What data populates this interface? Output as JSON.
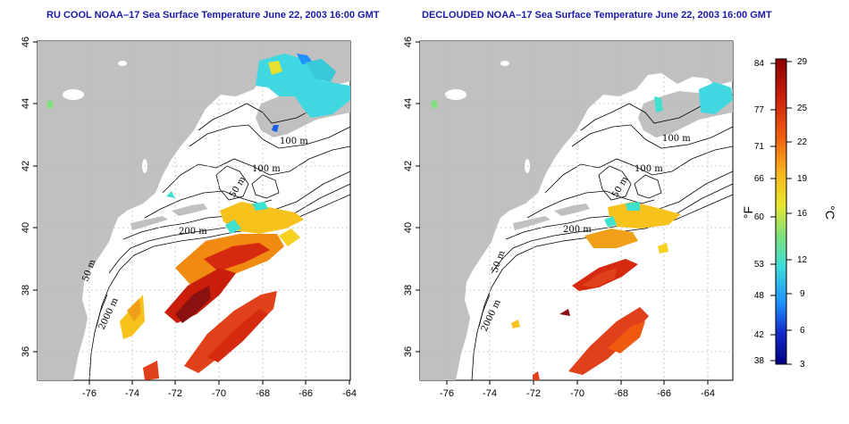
{
  "maps": [
    {
      "title": "RU COOL NOAA–17 Sea Surface Temperature June 22, 2003 16:00 GMT",
      "x_ticks": [
        "-76",
        "-74",
        "-72",
        "-70",
        "-68",
        "-66",
        "-64"
      ],
      "y_ticks": [
        "46",
        "44",
        "42",
        "40",
        "38",
        "36"
      ],
      "contour_labels": [
        "100 m",
        "100 m",
        "50 m",
        "200 m",
        "50 m",
        "2000 m"
      ]
    },
    {
      "title": "DECLOUDED NOAA–17 Sea Surface Temperature June 22, 2003 16:00 GMT",
      "x_ticks": [
        "-76",
        "-74",
        "-72",
        "-70",
        "-68",
        "-66",
        "-64"
      ],
      "y_ticks": [
        "46",
        "44",
        "42",
        "40",
        "38",
        "36"
      ],
      "contour_labels": [
        "100 m",
        "100 m",
        "50 m",
        "200 m",
        "50 m",
        "2000 m"
      ]
    }
  ],
  "colorbar": {
    "fahrenheit_ticks": [
      "84",
      "77",
      "71",
      "66",
      "60",
      "53",
      "48",
      "42",
      "38"
    ],
    "celsius_ticks": [
      "29",
      "25",
      "22",
      "19",
      "16",
      "12",
      "9",
      "6",
      "3"
    ],
    "fahrenheit_unit": "°F",
    "celsius_unit": "°C",
    "colors": [
      "#8b0000",
      "#d62a10",
      "#f06a10",
      "#f7c21c",
      "#e8e830",
      "#40e0d0",
      "#1e90ff",
      "#1428c8",
      "#000080"
    ]
  },
  "colors": {
    "land": "#c0c0c0",
    "ocean": "#ffffff",
    "title": "#1a1aa8",
    "grid": "#bdbdbd"
  }
}
